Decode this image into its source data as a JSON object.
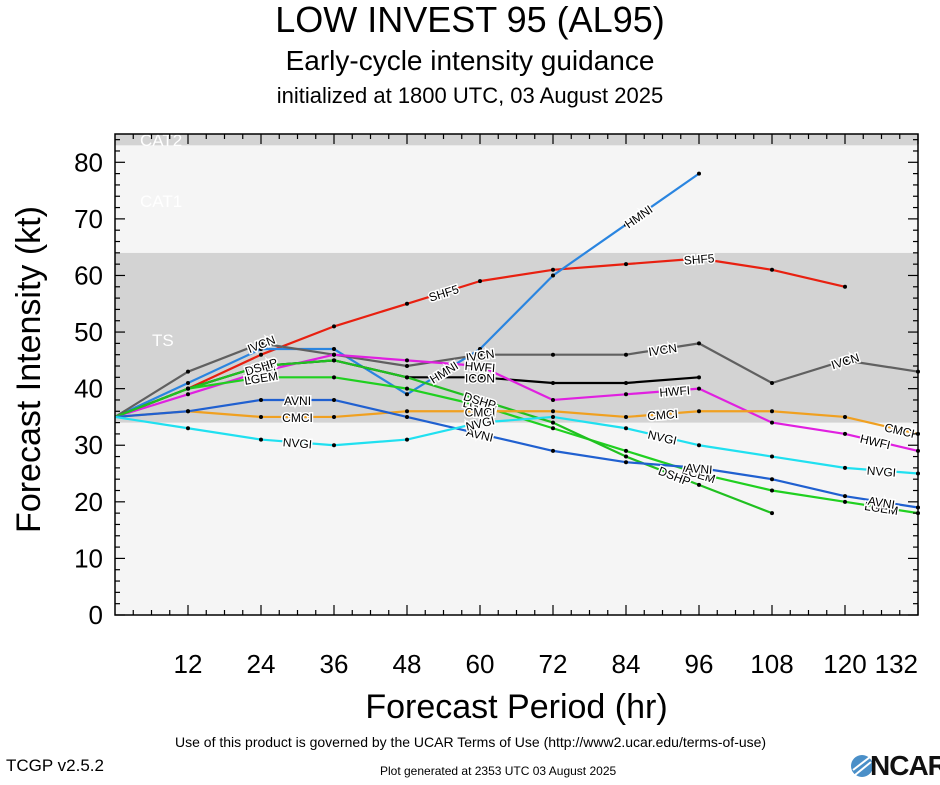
{
  "header": {
    "title": "LOW INVEST 95 (AL95)",
    "subtitle": "Early-cycle intensity guidance",
    "init": "initialized at 1800 UTC, 03 August 2025"
  },
  "footer": {
    "terms": "Use of this product is governed by the UCAR Terms of Use (http://www2.ucar.edu/terms-of-use)",
    "version": "TCGP v2.5.2",
    "generated": "Plot generated at 2353 UTC   03 August 2025",
    "logo": "NCAR"
  },
  "chart_data": {
    "type": "line",
    "xlabel": "Forecast Period (hr)",
    "ylabel": "Forecast Intensity (kt)",
    "xlim": [
      0,
      132
    ],
    "ylim": [
      0,
      85
    ],
    "xticks": [
      12,
      24,
      36,
      48,
      60,
      72,
      84,
      96,
      108,
      120,
      132
    ],
    "yticks": [
      0,
      10,
      20,
      30,
      40,
      50,
      60,
      70,
      80
    ],
    "bands": [
      {
        "label": "TS",
        "from": 34,
        "to": 64,
        "color": "#d3d3d3"
      },
      {
        "label": "CAT1",
        "from": 64,
        "to": 83,
        "color": "#f5f5f5"
      },
      {
        "label": "CAT2",
        "from": 83,
        "to": 85,
        "color": "#d3d3d3"
      }
    ],
    "series": [
      {
        "name": "SHF5",
        "color": "#e82010",
        "x": [
          0,
          12,
          24,
          36,
          48,
          60,
          72,
          84,
          96,
          108,
          120
        ],
        "y": [
          35,
          40,
          46,
          51,
          55,
          59,
          61,
          62,
          63,
          61,
          58
        ],
        "labels_at": [
          54,
          96
        ]
      },
      {
        "name": "HMNI",
        "color": "#2a85e0",
        "x": [
          0,
          12,
          24,
          36,
          48,
          60,
          72,
          84,
          96
        ],
        "y": [
          35,
          41,
          47,
          47,
          39,
          47,
          60,
          69,
          78
        ],
        "labels_at": [
          54,
          86
        ]
      },
      {
        "name": "IVCN",
        "color": "#606060",
        "x": [
          0,
          12,
          24,
          36,
          48,
          60,
          72,
          84,
          96,
          108,
          120,
          132
        ],
        "y": [
          35,
          43,
          48,
          46,
          44,
          46,
          46,
          46,
          48,
          41,
          45,
          43
        ],
        "labels_at": [
          24,
          60,
          90,
          120
        ]
      },
      {
        "name": "ICON",
        "color": "#000000",
        "x": [
          0,
          12,
          24,
          36,
          48,
          60,
          72,
          84,
          96
        ],
        "y": [
          35,
          40,
          44,
          45,
          42,
          42,
          41,
          41,
          42
        ],
        "labels_at": [
          24,
          60
        ]
      },
      {
        "name": "HWFI",
        "color": "#e020e0",
        "x": [
          0,
          12,
          24,
          36,
          48,
          60,
          72,
          84,
          96,
          108,
          120,
          132
        ],
        "y": [
          35,
          39,
          43,
          46,
          45,
          44,
          38,
          39,
          40,
          34,
          32,
          29
        ],
        "labels_at": [
          24,
          60,
          92,
          125
        ]
      },
      {
        "name": "LGEM",
        "color": "#20d020",
        "x": [
          0,
          12,
          24,
          36,
          48,
          60,
          72,
          84,
          96,
          108,
          120,
          132
        ],
        "y": [
          35,
          40,
          42,
          42,
          40,
          37,
          33,
          29,
          25,
          22,
          20,
          18
        ],
        "labels_at": [
          24,
          60,
          96,
          126
        ]
      },
      {
        "name": "DSHP",
        "color": "#20c020",
        "x": [
          0,
          12,
          24,
          36,
          48,
          60,
          72,
          84,
          96,
          108
        ],
        "y": [
          35,
          40,
          44,
          45,
          42,
          38,
          34,
          28,
          23,
          18
        ],
        "labels_at": [
          24,
          60,
          92
        ]
      },
      {
        "name": "CMCI",
        "color": "#f0a020",
        "x": [
          0,
          12,
          24,
          36,
          48,
          60,
          72,
          84,
          96,
          108,
          120,
          132
        ],
        "y": [
          35,
          36,
          35,
          35,
          36,
          36,
          36,
          35,
          36,
          36,
          35,
          32
        ],
        "labels_at": [
          30,
          60,
          90,
          129
        ]
      },
      {
        "name": "AVNI",
        "color": "#2060d0",
        "x": [
          0,
          12,
          24,
          36,
          48,
          60,
          72,
          84,
          96,
          108,
          120,
          132
        ],
        "y": [
          35,
          36,
          38,
          38,
          35,
          32,
          29,
          27,
          26,
          24,
          21,
          19
        ],
        "labels_at": [
          30,
          60,
          96,
          126
        ]
      },
      {
        "name": "NVGI",
        "color": "#20e0f0",
        "x": [
          0,
          12,
          24,
          36,
          48,
          60,
          72,
          84,
          96,
          108,
          120,
          132
        ],
        "y": [
          35,
          33,
          31,
          30,
          31,
          34,
          35,
          33,
          30,
          28,
          26,
          25
        ],
        "labels_at": [
          30,
          60,
          90,
          126
        ]
      }
    ],
    "band_text": [
      "TS",
      "CAT1",
      "CAT2"
    ]
  }
}
